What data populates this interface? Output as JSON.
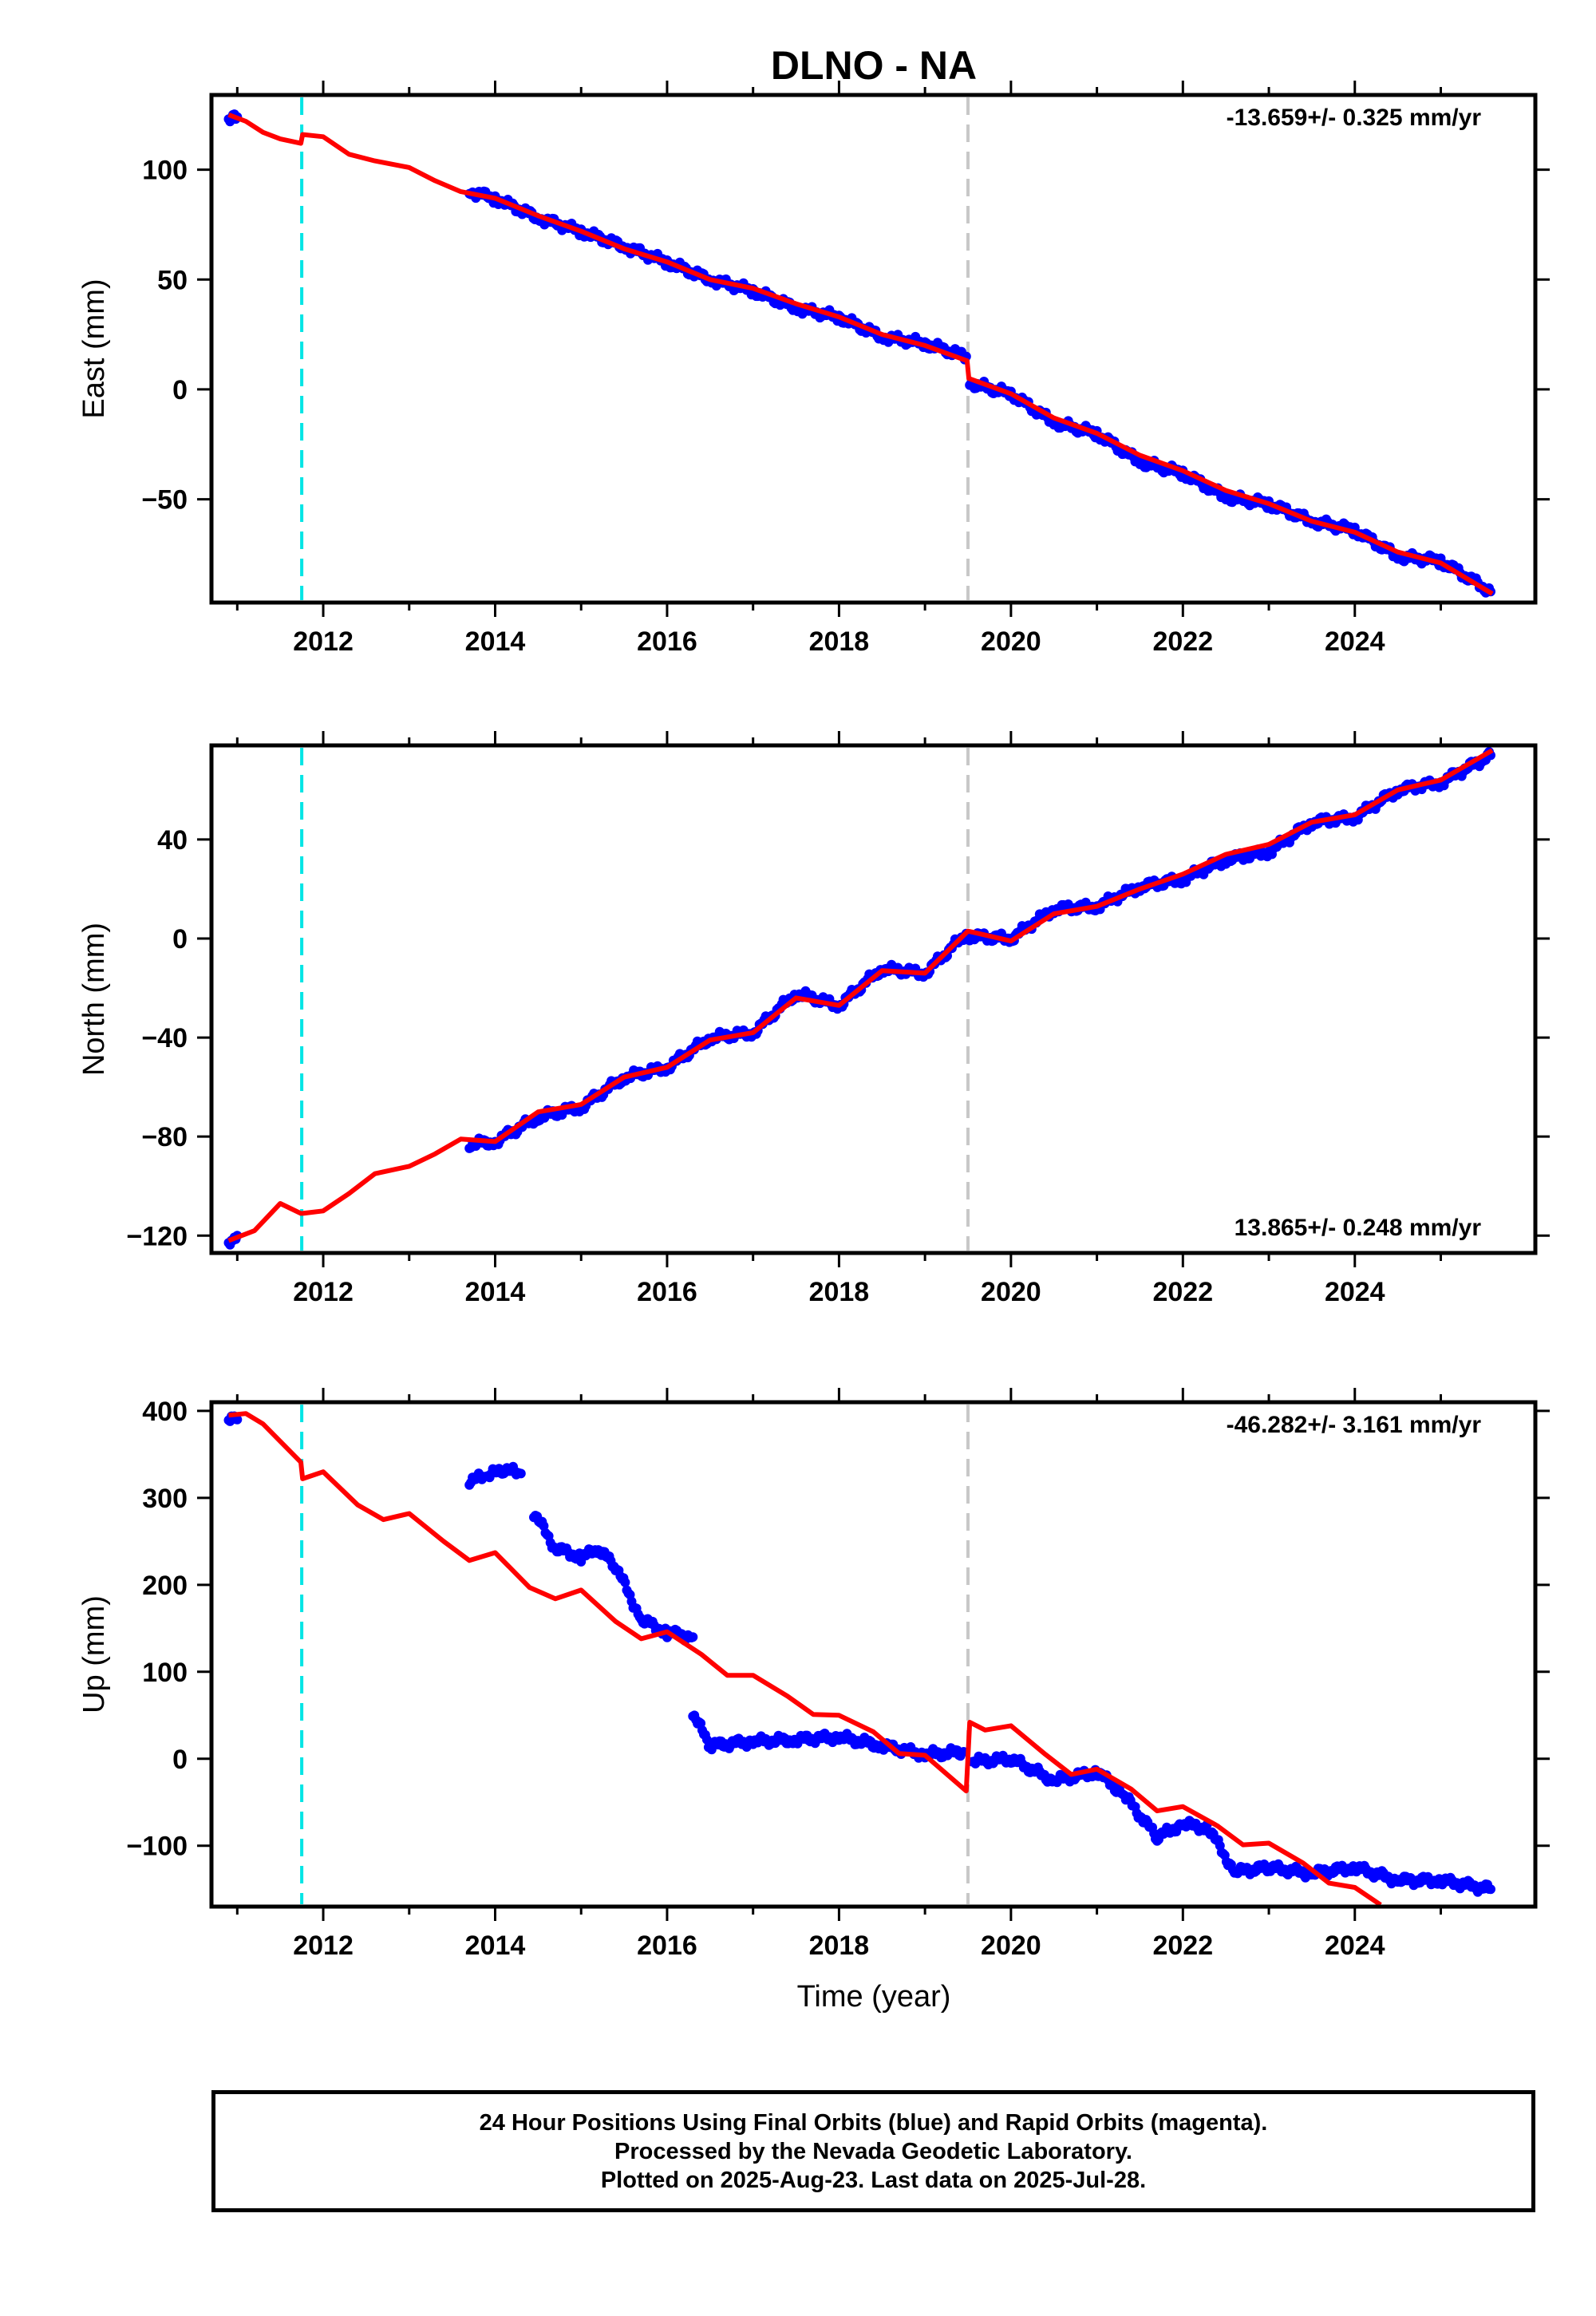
{
  "title": "DLNO - NA",
  "xlabel": "Time (year)",
  "colors": {
    "data": "#0000ff",
    "model": "#ff0000",
    "equipment_change": "#00e5e5",
    "other_event": "#c8c8c8"
  },
  "footer": {
    "line1": "24 Hour Positions Using Final Orbits (blue) and Rapid Orbits (magenta).",
    "line2": "Processed by the Nevada Geodetic Laboratory.",
    "line3": "Plotted on 2025-Aug-23. Last data on 2025-Jul-28."
  },
  "chart_data": [
    {
      "type": "scatter",
      "ylabel": "East (mm)",
      "rate_label": "-13.659+/- 0.325 mm/yr",
      "rate_position": "top-right",
      "xlim": [
        2010.7,
        2026.1
      ],
      "ylim": [
        -97,
        134
      ],
      "xticks": [
        2012,
        2014,
        2016,
        2018,
        2020,
        2022,
        2024
      ],
      "yticks": [
        -50,
        0,
        50,
        100
      ],
      "vlines": [
        {
          "x": 2011.75,
          "kind": "equipment_change"
        },
        {
          "x": 2019.5,
          "kind": "other_event"
        }
      ],
      "data_segments": [
        {
          "x": [
            2010.9,
            2010.95,
            2011.0
          ],
          "y": [
            123,
            125,
            124
          ]
        },
        {
          "x": [
            2013.7,
            2014.0,
            2014.5,
            2015.0,
            2015.5,
            2016.0,
            2016.5,
            2017.0,
            2017.5,
            2018.0,
            2018.5,
            2019.0,
            2019.48
          ],
          "y": [
            90,
            87,
            78,
            72,
            65,
            58,
            50,
            45,
            37,
            33,
            24,
            21,
            15
          ]
        },
        {
          "x": [
            2019.52,
            2020.0,
            2020.5,
            2021.0,
            2021.5,
            2022.0,
            2022.5,
            2023.0,
            2023.5,
            2024.0,
            2024.5,
            2025.0,
            2025.58
          ],
          "y": [
            3,
            -2,
            -15,
            -20,
            -33,
            -38,
            -49,
            -52,
            -60,
            -64,
            -76,
            -78,
            -92
          ]
        }
      ],
      "model": {
        "x": [
          2010.9,
          2011.1,
          2011.3,
          2011.5,
          2011.74,
          2011.76,
          2012.0,
          2012.3,
          2012.6,
          2013.0,
          2013.3,
          2013.6,
          2014.0,
          2014.5,
          2015.0,
          2015.5,
          2016.0,
          2016.5,
          2017.0,
          2017.5,
          2018.0,
          2018.5,
          2019.0,
          2019.49,
          2019.51,
          2020.0,
          2020.5,
          2021.0,
          2021.5,
          2022.0,
          2022.5,
          2023.0,
          2023.5,
          2024.0,
          2024.5,
          2025.0,
          2025.6
        ],
        "y": [
          125,
          122,
          117,
          114,
          112,
          116,
          115,
          107,
          104,
          101,
          95,
          90,
          87,
          79,
          72,
          64,
          58,
          50,
          46,
          39,
          33,
          25,
          20,
          13,
          5,
          -2,
          -13,
          -20,
          -30,
          -37,
          -46,
          -52,
          -60,
          -65,
          -74,
          -79,
          -93
        ]
      }
    },
    {
      "type": "scatter",
      "ylabel": "North (mm)",
      "rate_label": "13.865+/- 0.248 mm/yr",
      "rate_position": "bottom-right",
      "xlim": [
        2010.7,
        2026.1
      ],
      "ylim": [
        -127,
        78
      ],
      "xticks": [
        2012,
        2014,
        2016,
        2018,
        2020,
        2022,
        2024
      ],
      "yticks": [
        -120,
        -80,
        -40,
        0,
        40
      ],
      "vlines": [
        {
          "x": 2011.75,
          "kind": "equipment_change"
        },
        {
          "x": 2019.5,
          "kind": "other_event"
        }
      ],
      "data_segments": [
        {
          "x": [
            2010.9,
            2010.95,
            2011.0
          ],
          "y": [
            -122,
            -121,
            -120
          ]
        },
        {
          "x": [
            2013.7,
            2014.0,
            2014.5,
            2015.0,
            2015.5,
            2016.0,
            2016.5,
            2017.0,
            2017.5,
            2018.0,
            2018.5,
            2019.0,
            2019.48
          ],
          "y": [
            -83,
            -82,
            -72,
            -68,
            -56,
            -52,
            -40,
            -38,
            -22,
            -27,
            -12,
            -14,
            2
          ]
        },
        {
          "x": [
            2019.52,
            2020.0,
            2020.5,
            2021.0,
            2021.5,
            2022.0,
            2022.5,
            2023.0,
            2023.5,
            2024.0,
            2024.5,
            2025.0,
            2025.58
          ],
          "y": [
            1,
            0,
            12,
            13,
            21,
            24,
            32,
            35,
            47,
            49,
            60,
            63,
            74
          ]
        }
      ],
      "model": {
        "x": [
          2010.9,
          2011.2,
          2011.5,
          2011.74,
          2011.76,
          2012.0,
          2012.3,
          2012.6,
          2013.0,
          2013.3,
          2013.6,
          2014.0,
          2014.5,
          2015.0,
          2015.5,
          2016.0,
          2016.5,
          2017.0,
          2017.5,
          2018.0,
          2018.5,
          2019.0,
          2019.5,
          2020.0,
          2020.5,
          2021.0,
          2021.5,
          2022.0,
          2022.5,
          2023.0,
          2023.5,
          2024.0,
          2024.5,
          2025.0,
          2025.6
        ],
        "y": [
          -122,
          -118,
          -107,
          -111,
          -111,
          -110,
          -103,
          -95,
          -92,
          -87,
          -81,
          -82,
          -70,
          -67,
          -56,
          -52,
          -41,
          -38,
          -24,
          -27,
          -13,
          -14,
          3,
          -1,
          10,
          13,
          20,
          26,
          34,
          38,
          47,
          50,
          60,
          64,
          76
        ]
      }
    },
    {
      "type": "scatter",
      "ylabel": "Up (mm)",
      "rate_label": "-46.282+/- 3.161 mm/yr",
      "rate_position": "top-right",
      "xlim": [
        2010.7,
        2026.1
      ],
      "ylim": [
        -170,
        410
      ],
      "xticks": [
        2012,
        2014,
        2016,
        2018,
        2020,
        2022,
        2024
      ],
      "yticks": [
        -100,
        0,
        100,
        200,
        300,
        400
      ],
      "vlines": [
        {
          "x": 2011.75,
          "kind": "equipment_change"
        },
        {
          "x": 2019.5,
          "kind": "other_event"
        }
      ],
      "data_segments": [
        {
          "x": [
            2010.9,
            2010.95,
            2011.0
          ],
          "y": [
            392,
            394,
            390
          ]
        },
        {
          "x": [
            2013.7,
            2013.9,
            2014.1,
            2014.3
          ],
          "y": [
            320,
            325,
            333,
            328
          ]
        },
        {
          "x": [
            2014.45,
            2014.7,
            2015.0,
            2015.2,
            2015.4,
            2015.7,
            2016.0,
            2016.3
          ],
          "y": [
            283,
            242,
            232,
            240,
            222,
            160,
            145,
            140
          ]
        },
        {
          "x": [
            2016.3,
            2016.5,
            2017.0,
            2017.5,
            2018.0,
            2018.5,
            2019.0,
            2019.45
          ],
          "y": [
            52,
            15,
            20,
            22,
            25,
            15,
            5,
            8
          ]
        },
        {
          "x": [
            2019.55,
            2020.0,
            2020.5,
            2021.0,
            2021.3,
            2021.7,
            2022.0,
            2022.3,
            2022.6,
            2023.0,
            2023.5,
            2024.0,
            2024.5,
            2025.0,
            2025.58
          ],
          "y": [
            -3,
            0,
            -25,
            -15,
            -40,
            -90,
            -75,
            -80,
            -130,
            -125,
            -132,
            -125,
            -140,
            -140,
            -150
          ]
        }
      ],
      "model": {
        "x": [
          2010.9,
          2011.1,
          2011.3,
          2011.74,
          2011.76,
          2012.0,
          2012.4,
          2012.7,
          2013.0,
          2013.4,
          2013.7,
          2014.0,
          2014.4,
          2014.7,
          2015.0,
          2015.4,
          2015.7,
          2016.0,
          2016.4,
          2016.7,
          2017.0,
          2017.4,
          2017.7,
          2018.0,
          2018.4,
          2018.7,
          2019.0,
          2019.48,
          2019.52,
          2019.7,
          2020.0,
          2020.4,
          2020.7,
          2021.0,
          2021.4,
          2021.7,
          2022.0,
          2022.4,
          2022.7,
          2023.0,
          2023.4,
          2023.7,
          2024.0,
          2024.3
        ],
        "y": [
          395,
          397,
          385,
          341,
          322,
          330,
          292,
          275,
          282,
          250,
          228,
          237,
          197,
          184,
          194,
          158,
          138,
          146,
          120,
          96,
          96,
          72,
          51,
          50,
          31,
          6,
          4,
          -37,
          42,
          33,
          38,
          5,
          -18,
          -12,
          -35,
          -60,
          -55,
          -77,
          -99,
          -97,
          -120,
          -143,
          -148,
          -168
        ]
      }
    }
  ]
}
